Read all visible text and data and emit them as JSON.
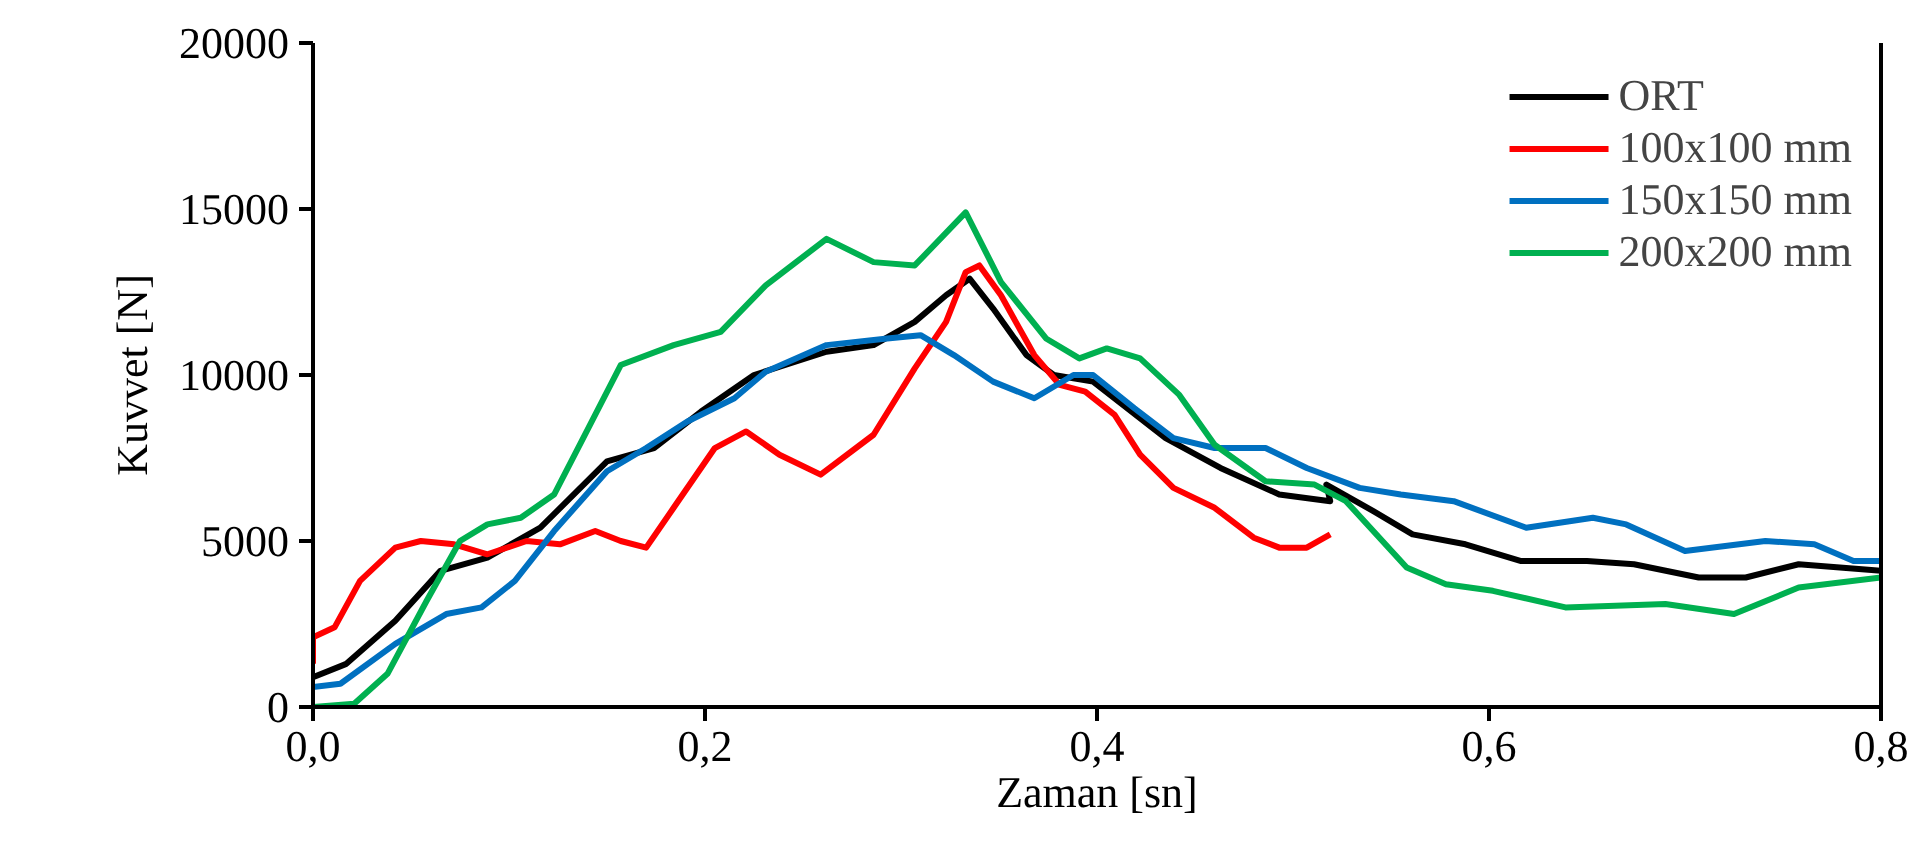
{
  "chart_data": {
    "type": "line",
    "xlabel": "Zaman [sn]",
    "ylabel": "Kuvvet [N]",
    "xlim": [
      0,
      0.8
    ],
    "ylim": [
      0,
      20000
    ],
    "xticks": [
      {
        "value": 0,
        "label": "0,0"
      },
      {
        "value": 0.2,
        "label": "0,2"
      },
      {
        "value": 0.4,
        "label": "0,4"
      },
      {
        "value": 0.6,
        "label": "0,6"
      },
      {
        "value": 0.8,
        "label": "0,8"
      }
    ],
    "yticks": [
      0,
      5000,
      10000,
      15000,
      20000
    ],
    "grid": false,
    "legend": "top right",
    "marker": "none",
    "line_style": "solid",
    "series": [
      {
        "name": "ORT",
        "color": "#000000",
        "x": [
          0,
          0.017,
          0.042,
          0.065,
          0.089,
          0.116,
          0.15,
          0.174,
          0.198,
          0.225,
          0.262,
          0.286,
          0.307,
          0.323,
          0.335,
          0.347,
          0.364,
          0.378,
          0.398,
          0.435,
          0.463,
          0.493,
          0.519,
          0.517,
          0.541,
          0.561,
          0.588,
          0.616,
          0.65,
          0.674,
          0.707,
          0.731,
          0.758,
          0.779,
          0.8
        ],
        "values": [
          900,
          1300,
          2600,
          4100,
          4500,
          5400,
          7400,
          7800,
          8900,
          10000,
          10700,
          10900,
          11600,
          12400,
          12900,
          12000,
          10600,
          10000,
          9800,
          8100,
          7200,
          6400,
          6200,
          6700,
          5900,
          5200,
          4900,
          4400,
          4400,
          4300,
          3900,
          3900,
          4300,
          4200,
          4100
        ]
      },
      {
        "name": "100x100 mm",
        "color": "#ff0000",
        "x": [
          0,
          0,
          0.011,
          0.024,
          0.042,
          0.055,
          0.072,
          0.089,
          0.109,
          0.126,
          0.144,
          0.157,
          0.17,
          0.184,
          0.205,
          0.221,
          0.238,
          0.259,
          0.286,
          0.307,
          0.323,
          0.333,
          0.34,
          0.351,
          0.368,
          0.381,
          0.394,
          0.409,
          0.422,
          0.439,
          0.46,
          0.48,
          0.493,
          0.507,
          0.519
        ],
        "values": [
          1300,
          2100,
          2400,
          3800,
          4800,
          5000,
          4900,
          4600,
          5000,
          4900,
          5300,
          5000,
          4800,
          6000,
          7800,
          8300,
          7600,
          7000,
          8200,
          10200,
          11600,
          13100,
          13300,
          12400,
          10600,
          9700,
          9500,
          8800,
          7600,
          6600,
          6000,
          5100,
          4800,
          4800,
          5200
        ]
      },
      {
        "name": "150x150 mm",
        "color": "#0070c0",
        "x": [
          0,
          0.014,
          0.042,
          0.068,
          0.086,
          0.103,
          0.123,
          0.15,
          0.17,
          0.191,
          0.215,
          0.231,
          0.262,
          0.293,
          0.31,
          0.327,
          0.347,
          0.368,
          0.388,
          0.398,
          0.419,
          0.439,
          0.46,
          0.486,
          0.507,
          0.534,
          0.555,
          0.582,
          0.619,
          0.653,
          0.67,
          0.7,
          0.741,
          0.766,
          0.786,
          0.8
        ],
        "values": [
          600,
          700,
          1900,
          2800,
          3000,
          3800,
          5300,
          7100,
          7800,
          8600,
          9300,
          10100,
          10900,
          11100,
          11200,
          10600,
          9800,
          9300,
          10000,
          10000,
          9000,
          8100,
          7800,
          7800,
          7200,
          6600,
          6400,
          6200,
          5400,
          5700,
          5500,
          4700,
          5000,
          4900,
          4400,
          4400
        ]
      },
      {
        "name": "200x200 mm",
        "color": "#00b050",
        "x": [
          0,
          0.021,
          0.038,
          0.058,
          0.075,
          0.089,
          0.106,
          0.123,
          0.137,
          0.157,
          0.184,
          0.208,
          0.231,
          0.262,
          0.286,
          0.307,
          0.333,
          0.351,
          0.374,
          0.391,
          0.405,
          0.422,
          0.442,
          0.46,
          0.486,
          0.511,
          0.527,
          0.558,
          0.578,
          0.602,
          0.639,
          0.69,
          0.725,
          0.758,
          0.8
        ],
        "values": [
          0,
          100,
          1000,
          3200,
          5000,
          5500,
          5700,
          6400,
          8000,
          10300,
          10900,
          11300,
          12700,
          14100,
          13400,
          13300,
          14900,
          12800,
          11100,
          10500,
          10800,
          10500,
          9400,
          7900,
          6800,
          6700,
          6200,
          4200,
          3700,
          3500,
          3000,
          3100,
          2800,
          3600,
          3900
        ]
      }
    ]
  }
}
